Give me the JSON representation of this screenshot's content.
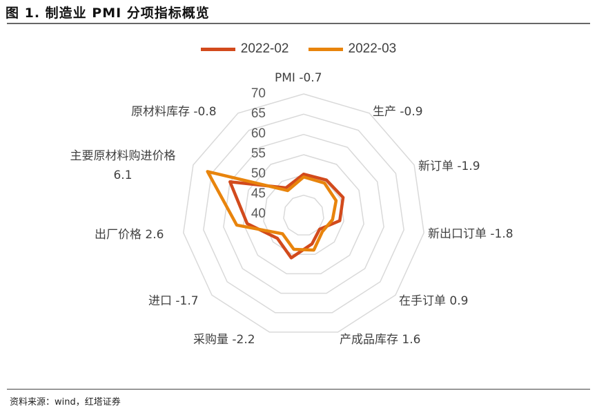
{
  "title": "图 1. 制造业 PMI 分项指标概览",
  "source": "资料来源：wind，红塔证券",
  "chart_data": {
    "type": "radar",
    "title": "制造业 PMI 分项指标概览",
    "categories": [
      "PMI -0.7",
      "生产 -0.9",
      "新订单 -1.9",
      "新出口订单 -1.8",
      "在手订单 0.9",
      "产成品库存 1.6",
      "采购量 -2.2",
      "进口 -1.7",
      "出厂价格 2.6",
      "主要原材料购进价格 6.1",
      "原材料库存 -0.8"
    ],
    "axis": {
      "min": 40,
      "max": 70,
      "ticks": [
        "40",
        "45",
        "50",
        "55",
        "60",
        "65",
        "70"
      ]
    },
    "legend_position": "top",
    "series": [
      {
        "name": "2022-02",
        "color": "#D24A1C",
        "values": [
          50.2,
          50.4,
          50.7,
          49.0,
          45.2,
          47.3,
          50.9,
          48.6,
          54.1,
          60.0,
          48.1
        ]
      },
      {
        "name": "2022-03",
        "color": "#E8840C",
        "values": [
          49.5,
          49.5,
          48.8,
          47.2,
          46.1,
          48.9,
          48.7,
          46.9,
          56.7,
          66.1,
          47.3
        ]
      }
    ]
  }
}
